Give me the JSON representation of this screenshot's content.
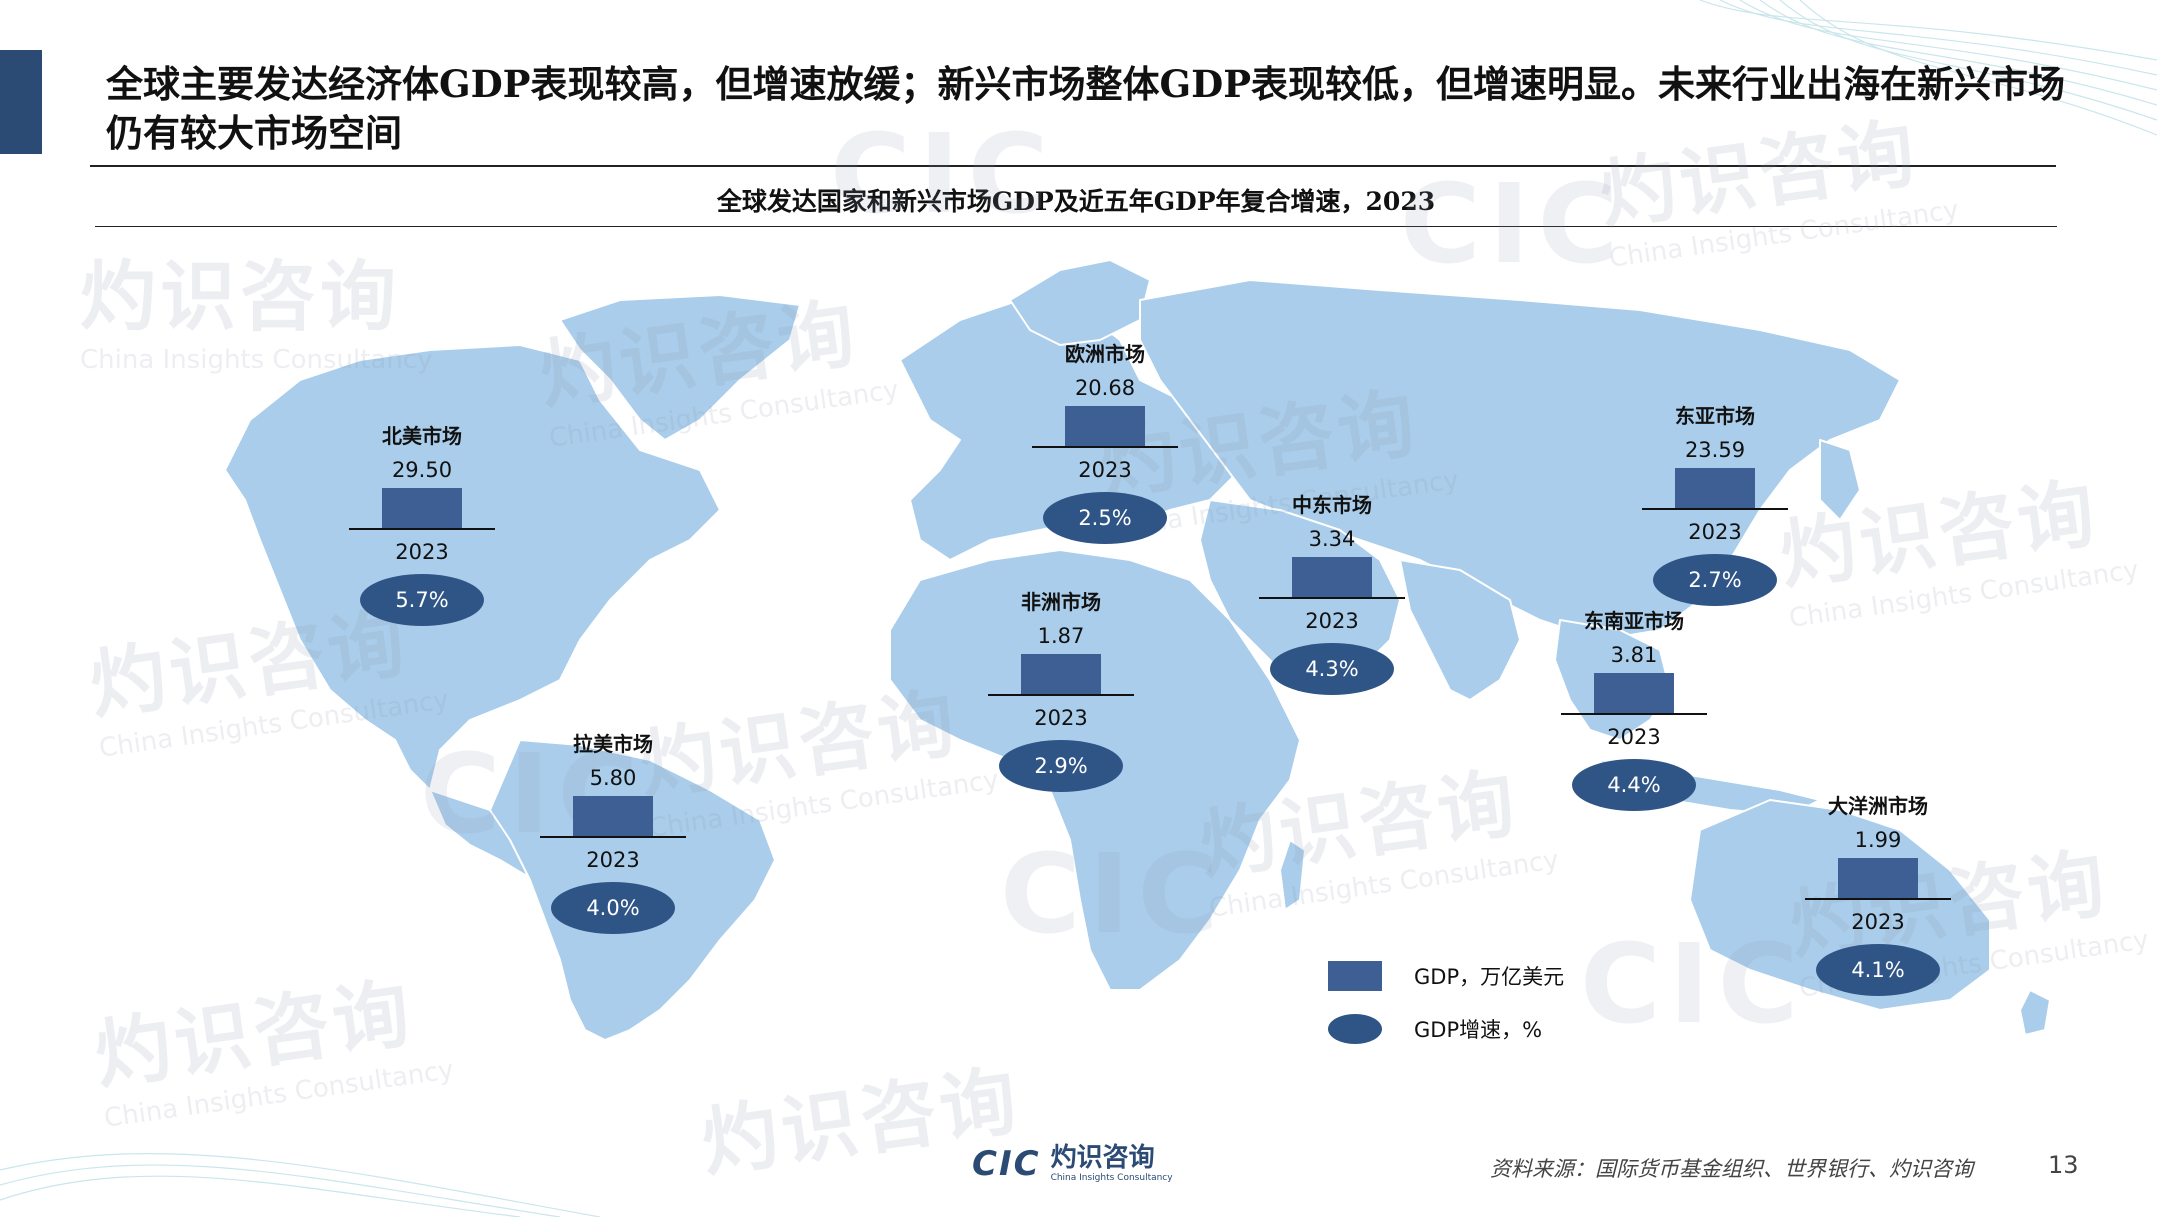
{
  "slide": {
    "title": "全球主要发达经济体GDP表现较高，但增速放缓；新兴市场整体GDP表现较低，但增速明显。未来行业出海在新兴市场仍有较大市场空间",
    "caption": "全球发达国家和新兴市场GDP及近五年GDP年复合增速，2023",
    "page_number": "13",
    "source": "资料来源：国际货币基金组织、世界银行、灼识咨询"
  },
  "branding": {
    "logo_mark": "CIC",
    "logo_cn": "灼识咨询",
    "logo_en": "China Insights Consultancy",
    "watermark_cn": "灼识咨询",
    "watermark_en": "China Insights Consultancy",
    "accent_color": "#2b4a74",
    "map_color": "#a9cdea",
    "bar_color": "#3d5f93",
    "pill_color": "#2f5587"
  },
  "legend": {
    "gdp_label": "GDP，万亿美元",
    "growth_label": "GDP增速，%"
  },
  "chart_data": {
    "type": "map",
    "title": "全球发达国家和新兴市场GDP及近五年GDP年复合增速，2023",
    "units": {
      "gdp": "万亿美元",
      "growth": "%"
    },
    "regions": [
      {
        "name": "北美市场",
        "gdp": "29.50",
        "year": "2023",
        "growth": "5.7%"
      },
      {
        "name": "欧洲市场",
        "gdp": "20.68",
        "year": "2023",
        "growth": "2.5%"
      },
      {
        "name": "东亚市场",
        "gdp": "23.59",
        "year": "2023",
        "growth": "2.7%"
      },
      {
        "name": "中东市场",
        "gdp": "3.34",
        "year": "2023",
        "growth": "4.3%"
      },
      {
        "name": "非洲市场",
        "gdp": "1.87",
        "year": "2023",
        "growth": "2.9%"
      },
      {
        "name": "东南亚市场",
        "gdp": "3.81",
        "year": "2023",
        "growth": "4.4%"
      },
      {
        "name": "拉美市场",
        "gdp": "5.80",
        "year": "2023",
        "growth": "4.0%"
      },
      {
        "name": "大洋洲市场",
        "gdp": "1.99",
        "year": "2023",
        "growth": "4.1%"
      }
    ]
  }
}
